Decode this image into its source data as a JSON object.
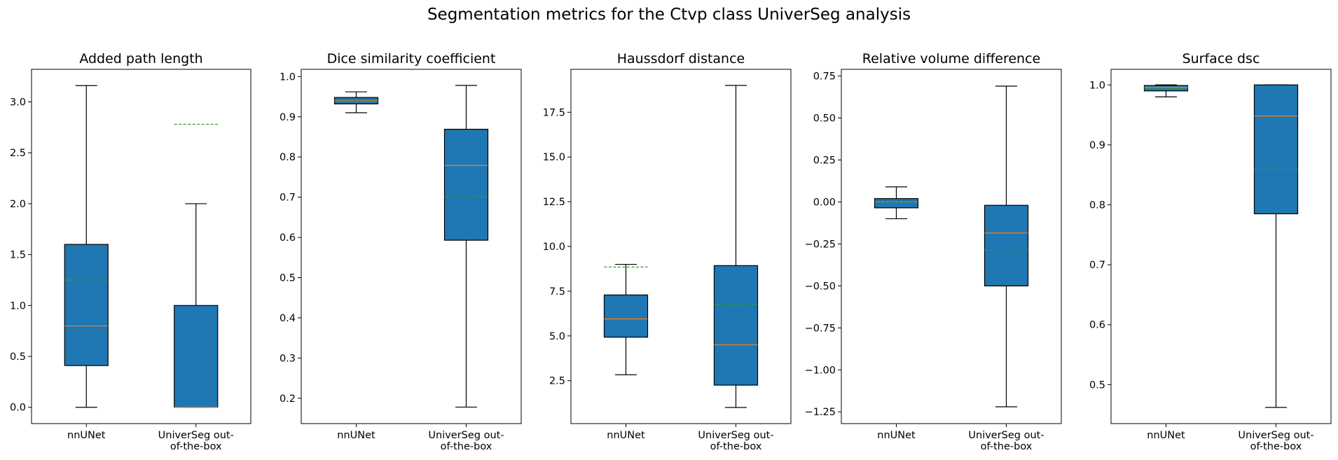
{
  "title": "Segmentation metrics for the Ctvp class UniverSeg analysis",
  "colors": {
    "box_fill": "#1f77b4",
    "median": "#ff7f0e",
    "mean": "#2ca02c",
    "edge": "#000000"
  },
  "chart_data": [
    {
      "type": "box",
      "title": "Added path length",
      "categories": [
        "nnUNet",
        "UniverSeg out-\nof-the-box"
      ],
      "ylim": [
        -0.16,
        3.32
      ],
      "yticks": [
        0.0,
        0.5,
        1.0,
        1.5,
        2.0,
        2.5,
        3.0
      ],
      "ytick_labels": [
        "0.0",
        "0.5",
        "1.0",
        "1.5",
        "2.0",
        "2.5",
        "3.0"
      ],
      "boxes": [
        {
          "whislo": 0.0,
          "q1": 0.41,
          "med": 0.8,
          "q3": 1.6,
          "whishi": 3.16,
          "mean": 1.25
        },
        {
          "whislo": 0.0,
          "q1": 0.0,
          "med": 0.0,
          "q3": 1.0,
          "whishi": 2.0,
          "mean": 2.78
        }
      ]
    },
    {
      "type": "box",
      "title": "Dice similarity coefficient",
      "categories": [
        "nnUNet",
        "UniverSeg out-\nof-the-box"
      ],
      "ylim": [
        0.137,
        1.018
      ],
      "yticks": [
        0.2,
        0.3,
        0.4,
        0.5,
        0.6,
        0.7,
        0.8,
        0.9,
        1.0
      ],
      "ytick_labels": [
        "0.2",
        "0.3",
        "0.4",
        "0.5",
        "0.6",
        "0.7",
        "0.8",
        "0.9",
        "1.0"
      ],
      "boxes": [
        {
          "whislo": 0.91,
          "q1": 0.932,
          "med": 0.94,
          "q3": 0.948,
          "whishi": 0.962,
          "mean": 0.939
        },
        {
          "whislo": 0.178,
          "q1": 0.593,
          "med": 0.779,
          "q3": 0.869,
          "whishi": 0.978,
          "mean": 0.701
        }
      ]
    },
    {
      "type": "box",
      "title": "Haussdorf distance",
      "categories": [
        "nnUNet",
        "UniverSeg out-\nof-the-box"
      ],
      "ylim": [
        0.1,
        19.9
      ],
      "yticks": [
        2.5,
        5.0,
        7.5,
        10.0,
        12.5,
        15.0,
        17.5
      ],
      "ytick_labels": [
        "2.5",
        "5.0",
        "7.5",
        "10.0",
        "12.5",
        "15.0",
        "17.5"
      ],
      "boxes": [
        {
          "whislo": 2.83,
          "q1": 4.93,
          "med": 5.95,
          "q3": 7.29,
          "whishi": 9.0,
          "mean": 8.85
        },
        {
          "whislo": 1.0,
          "q1": 2.25,
          "med": 4.5,
          "q3": 8.93,
          "whishi": 19.0,
          "mean": 6.77
        }
      ]
    },
    {
      "type": "box",
      "title": "Relative volume difference",
      "categories": [
        "nnUNet",
        "UniverSeg out-\nof-the-box"
      ],
      "ylim": [
        -1.32,
        0.79
      ],
      "yticks": [
        -1.25,
        -1.0,
        -0.75,
        -0.5,
        -0.25,
        0.0,
        0.25,
        0.5,
        0.75
      ],
      "ytick_labels": [
        "−1.25",
        "−1.00",
        "−0.75",
        "−0.50",
        "−0.25",
        "0.00",
        "0.25",
        "0.50",
        "0.75"
      ],
      "boxes": [
        {
          "whislo": -0.1,
          "q1": -0.035,
          "med": 0.0,
          "q3": 0.02,
          "whishi": 0.09,
          "mean": 0.0
        },
        {
          "whislo": -1.22,
          "q1": -0.5,
          "med": -0.185,
          "q3": -0.02,
          "whishi": 0.69,
          "mean": -0.285
        }
      ]
    },
    {
      "type": "box",
      "title": "Surface dsc",
      "categories": [
        "nnUNet",
        "UniverSeg out-\nof-the-box"
      ],
      "ylim": [
        0.435,
        1.026
      ],
      "yticks": [
        0.5,
        0.6,
        0.7,
        0.8,
        0.9,
        1.0
      ],
      "ytick_labels": [
        "0.5",
        "0.6",
        "0.7",
        "0.8",
        "0.9",
        "1.0"
      ],
      "boxes": [
        {
          "whislo": 0.98,
          "q1": 0.99,
          "med": 0.996,
          "q3": 0.999,
          "whishi": 1.0,
          "mean": 0.994
        },
        {
          "whislo": 0.462,
          "q1": 0.785,
          "med": 0.948,
          "q3": 1.0,
          "whishi": 1.0,
          "mean": 0.859
        }
      ]
    }
  ]
}
